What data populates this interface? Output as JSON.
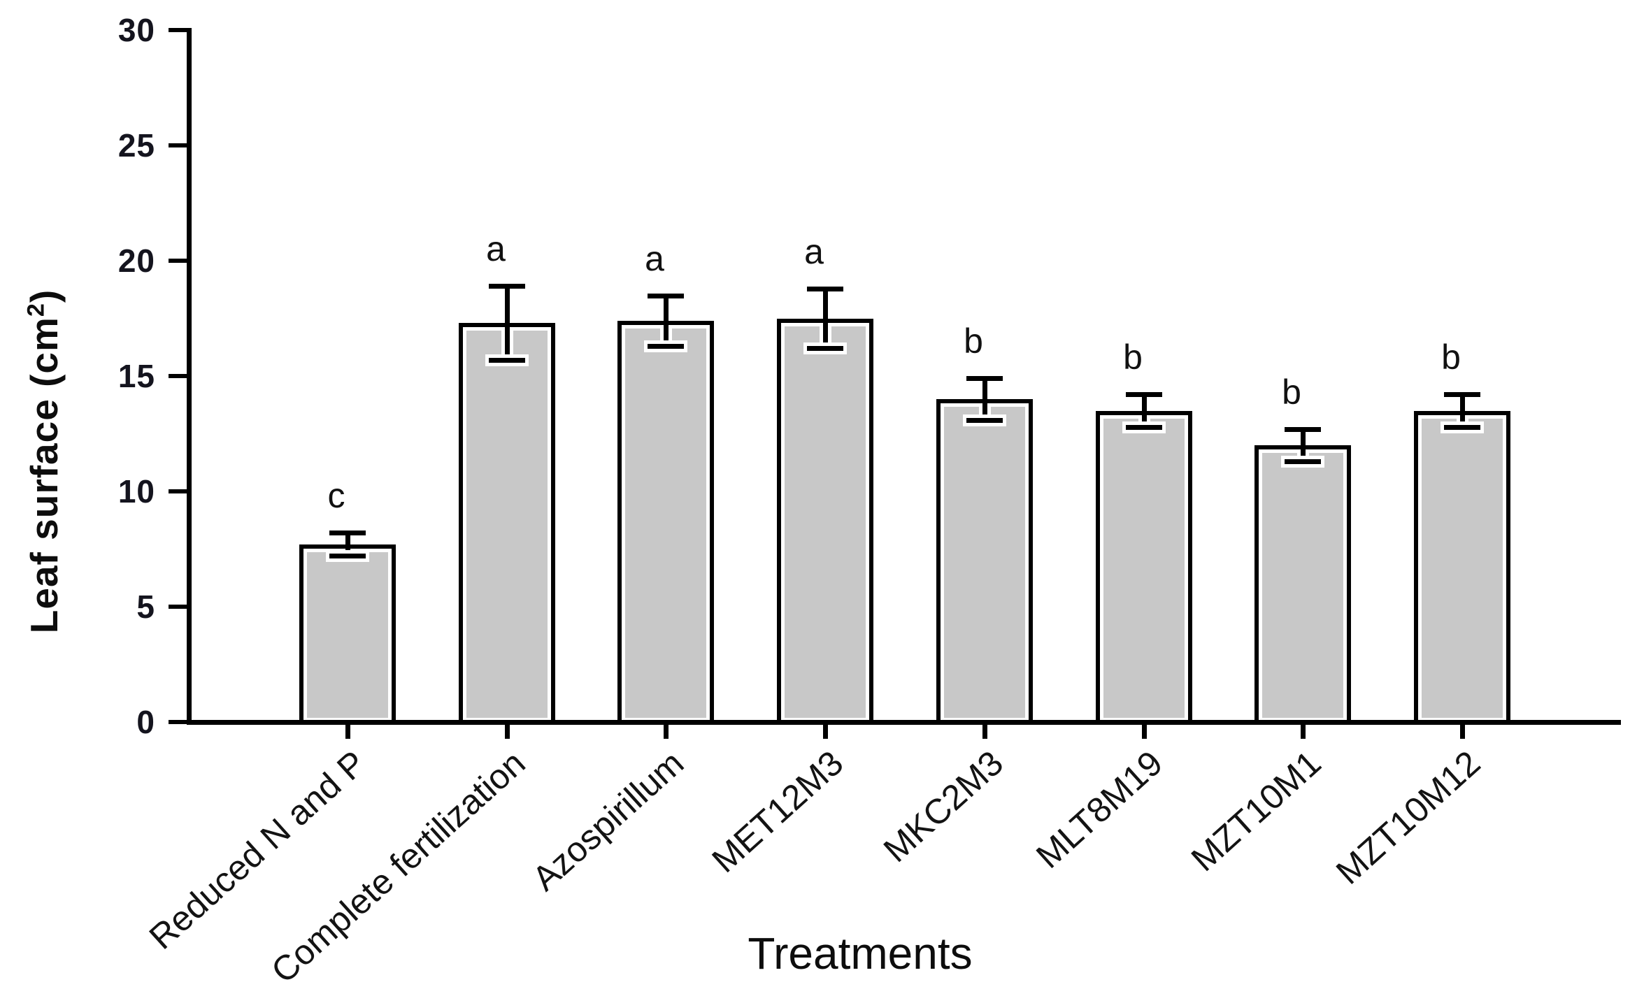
{
  "figure": {
    "y_axis": {
      "title_pre": "Leaf surface (cm",
      "title_sup": "2",
      "title_post": ")"
    },
    "x_axis": {
      "title": "Treatments"
    }
  },
  "chart_data": {
    "type": "bar",
    "title": "",
    "xlabel": "Treatments",
    "ylabel": "Leaf surface (cm²)",
    "ylim": [
      0,
      30
    ],
    "yticks": [
      0,
      5,
      10,
      15,
      20,
      25,
      30
    ],
    "grid": false,
    "legend": null,
    "bar_fill_color": "#c8c8c8",
    "bar_edge_color": "#000000",
    "error_bar_color": "#000000",
    "categories": [
      "Reduced N and P",
      "Complete fertilization",
      "Azospirillum",
      "MET12M3",
      "MKC2M3",
      "MLT8M19",
      "MZT10M1",
      "MZT10M12"
    ],
    "values": [
      7.7,
      17.3,
      17.4,
      17.5,
      14.0,
      13.5,
      12.0,
      13.5
    ],
    "errors": [
      0.5,
      1.6,
      1.1,
      1.3,
      0.9,
      0.7,
      0.7,
      0.7
    ],
    "sig_letters": [
      "c",
      "a",
      "a",
      "a",
      "b",
      "b",
      "b",
      "b"
    ]
  }
}
